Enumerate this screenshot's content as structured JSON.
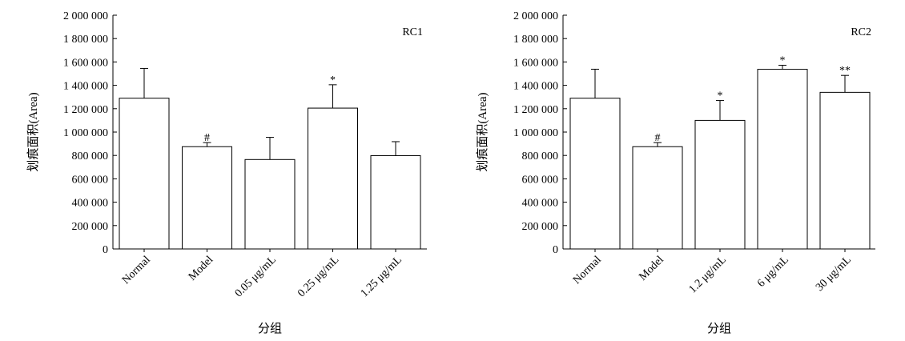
{
  "chart_data": [
    {
      "type": "bar",
      "panel_label": "RC1",
      "ylabel": "划痕面积(Area)",
      "xlabel": "分组",
      "ylim": [
        0,
        2000000
      ],
      "yticks": [
        0,
        200000,
        400000,
        600000,
        800000,
        1000000,
        1200000,
        1400000,
        1600000,
        1800000,
        2000000
      ],
      "ytick_labels": [
        "0",
        "200 000",
        "400 000",
        "600 000",
        "800 000",
        "1 000 000",
        "1 200 000",
        "1 400 000",
        "1 600 000",
        "1 800 000",
        "2 000 000"
      ],
      "categories": [
        "Normal",
        "Model",
        "0.05 μg/mL",
        "0.25 μg/mL",
        "1.25 μg/mL"
      ],
      "values": [
        1290000,
        875000,
        765000,
        1205000,
        798000
      ],
      "errors": [
        255000,
        35000,
        190000,
        200000,
        120000
      ],
      "annotations": [
        "",
        "#",
        "",
        "*",
        ""
      ],
      "grid": false
    },
    {
      "type": "bar",
      "panel_label": "RC2",
      "ylabel": "划痕面积(Area)",
      "xlabel": "分组",
      "ylim": [
        0,
        2000000
      ],
      "yticks": [
        0,
        200000,
        400000,
        600000,
        800000,
        1000000,
        1200000,
        1400000,
        1600000,
        1800000,
        2000000
      ],
      "ytick_labels": [
        "0",
        "200 000",
        "400 000",
        "600 000",
        "800 000",
        "1 000 000",
        "1 200 000",
        "1 400 000",
        "1 600 000",
        "1 800 000",
        "2 000 000"
      ],
      "categories": [
        "Normal",
        "Model",
        "1.2 μg/mL",
        "6 μg/mL",
        "30 μg/mL"
      ],
      "values": [
        1290000,
        875000,
        1100000,
        1537000,
        1340000
      ],
      "errors": [
        248000,
        35000,
        170000,
        35000,
        145000
      ],
      "annotations": [
        "",
        "#",
        "*",
        "*",
        "**"
      ],
      "grid": false
    }
  ]
}
